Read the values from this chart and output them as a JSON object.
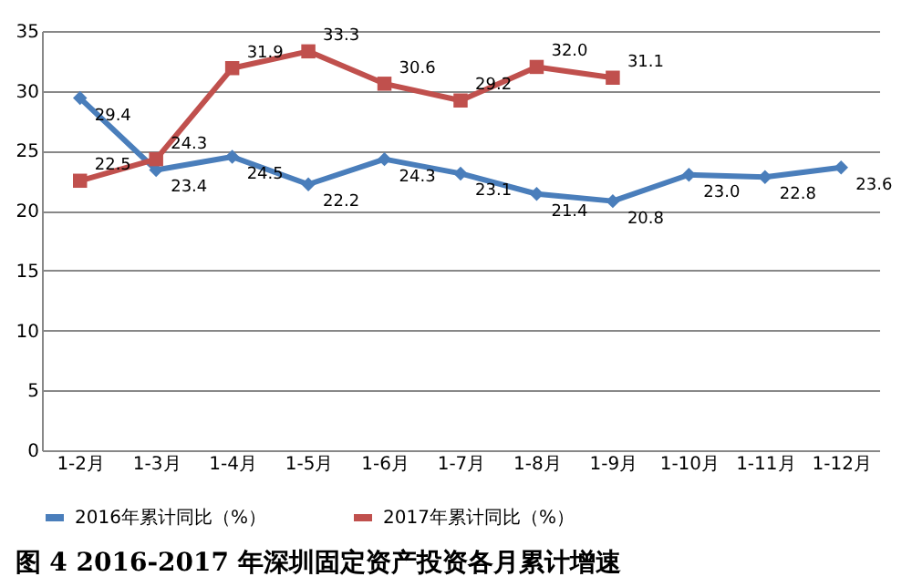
{
  "chart_data": {
    "type": "line",
    "title": "图 4    2016-2017 年深圳固定资产投资各月累计增速",
    "categories": [
      "1-2月",
      "1-3月",
      "1-4月",
      "1-5月",
      "1-6月",
      "1-7月",
      "1-8月",
      "1-9月",
      "1-10月",
      "1-11月",
      "1-12月"
    ],
    "series": [
      {
        "name": "2016年累计同比（%）",
        "color": "#4a7ebb",
        "marker": "diamond",
        "values": [
          29.4,
          23.4,
          24.5,
          22.2,
          24.3,
          23.1,
          21.4,
          20.8,
          23.0,
          22.8,
          23.6
        ],
        "value_labels": [
          "29.4",
          "23.4",
          "24.5",
          "22.2",
          "24.3",
          "23.1",
          "21.4",
          "20.8",
          "23.0",
          "22.8",
          "23.6"
        ]
      },
      {
        "name": "2017年累计同比（%）",
        "color": "#c0504d",
        "marker": "square",
        "values": [
          22.5,
          24.3,
          31.9,
          33.3,
          30.6,
          29.2,
          32.0,
          31.1,
          null,
          null,
          null
        ],
        "value_labels": [
          "22.5",
          "24.3",
          "31.9",
          "33.3",
          "30.6",
          "29.2",
          "32.0",
          "31.1",
          null,
          null,
          null
        ]
      }
    ],
    "ylim": [
      0,
      35
    ],
    "yticks": [
      0,
      5,
      10,
      15,
      20,
      25,
      30,
      35
    ],
    "grid": "y",
    "legend": "bottom",
    "line_style": "solid"
  }
}
